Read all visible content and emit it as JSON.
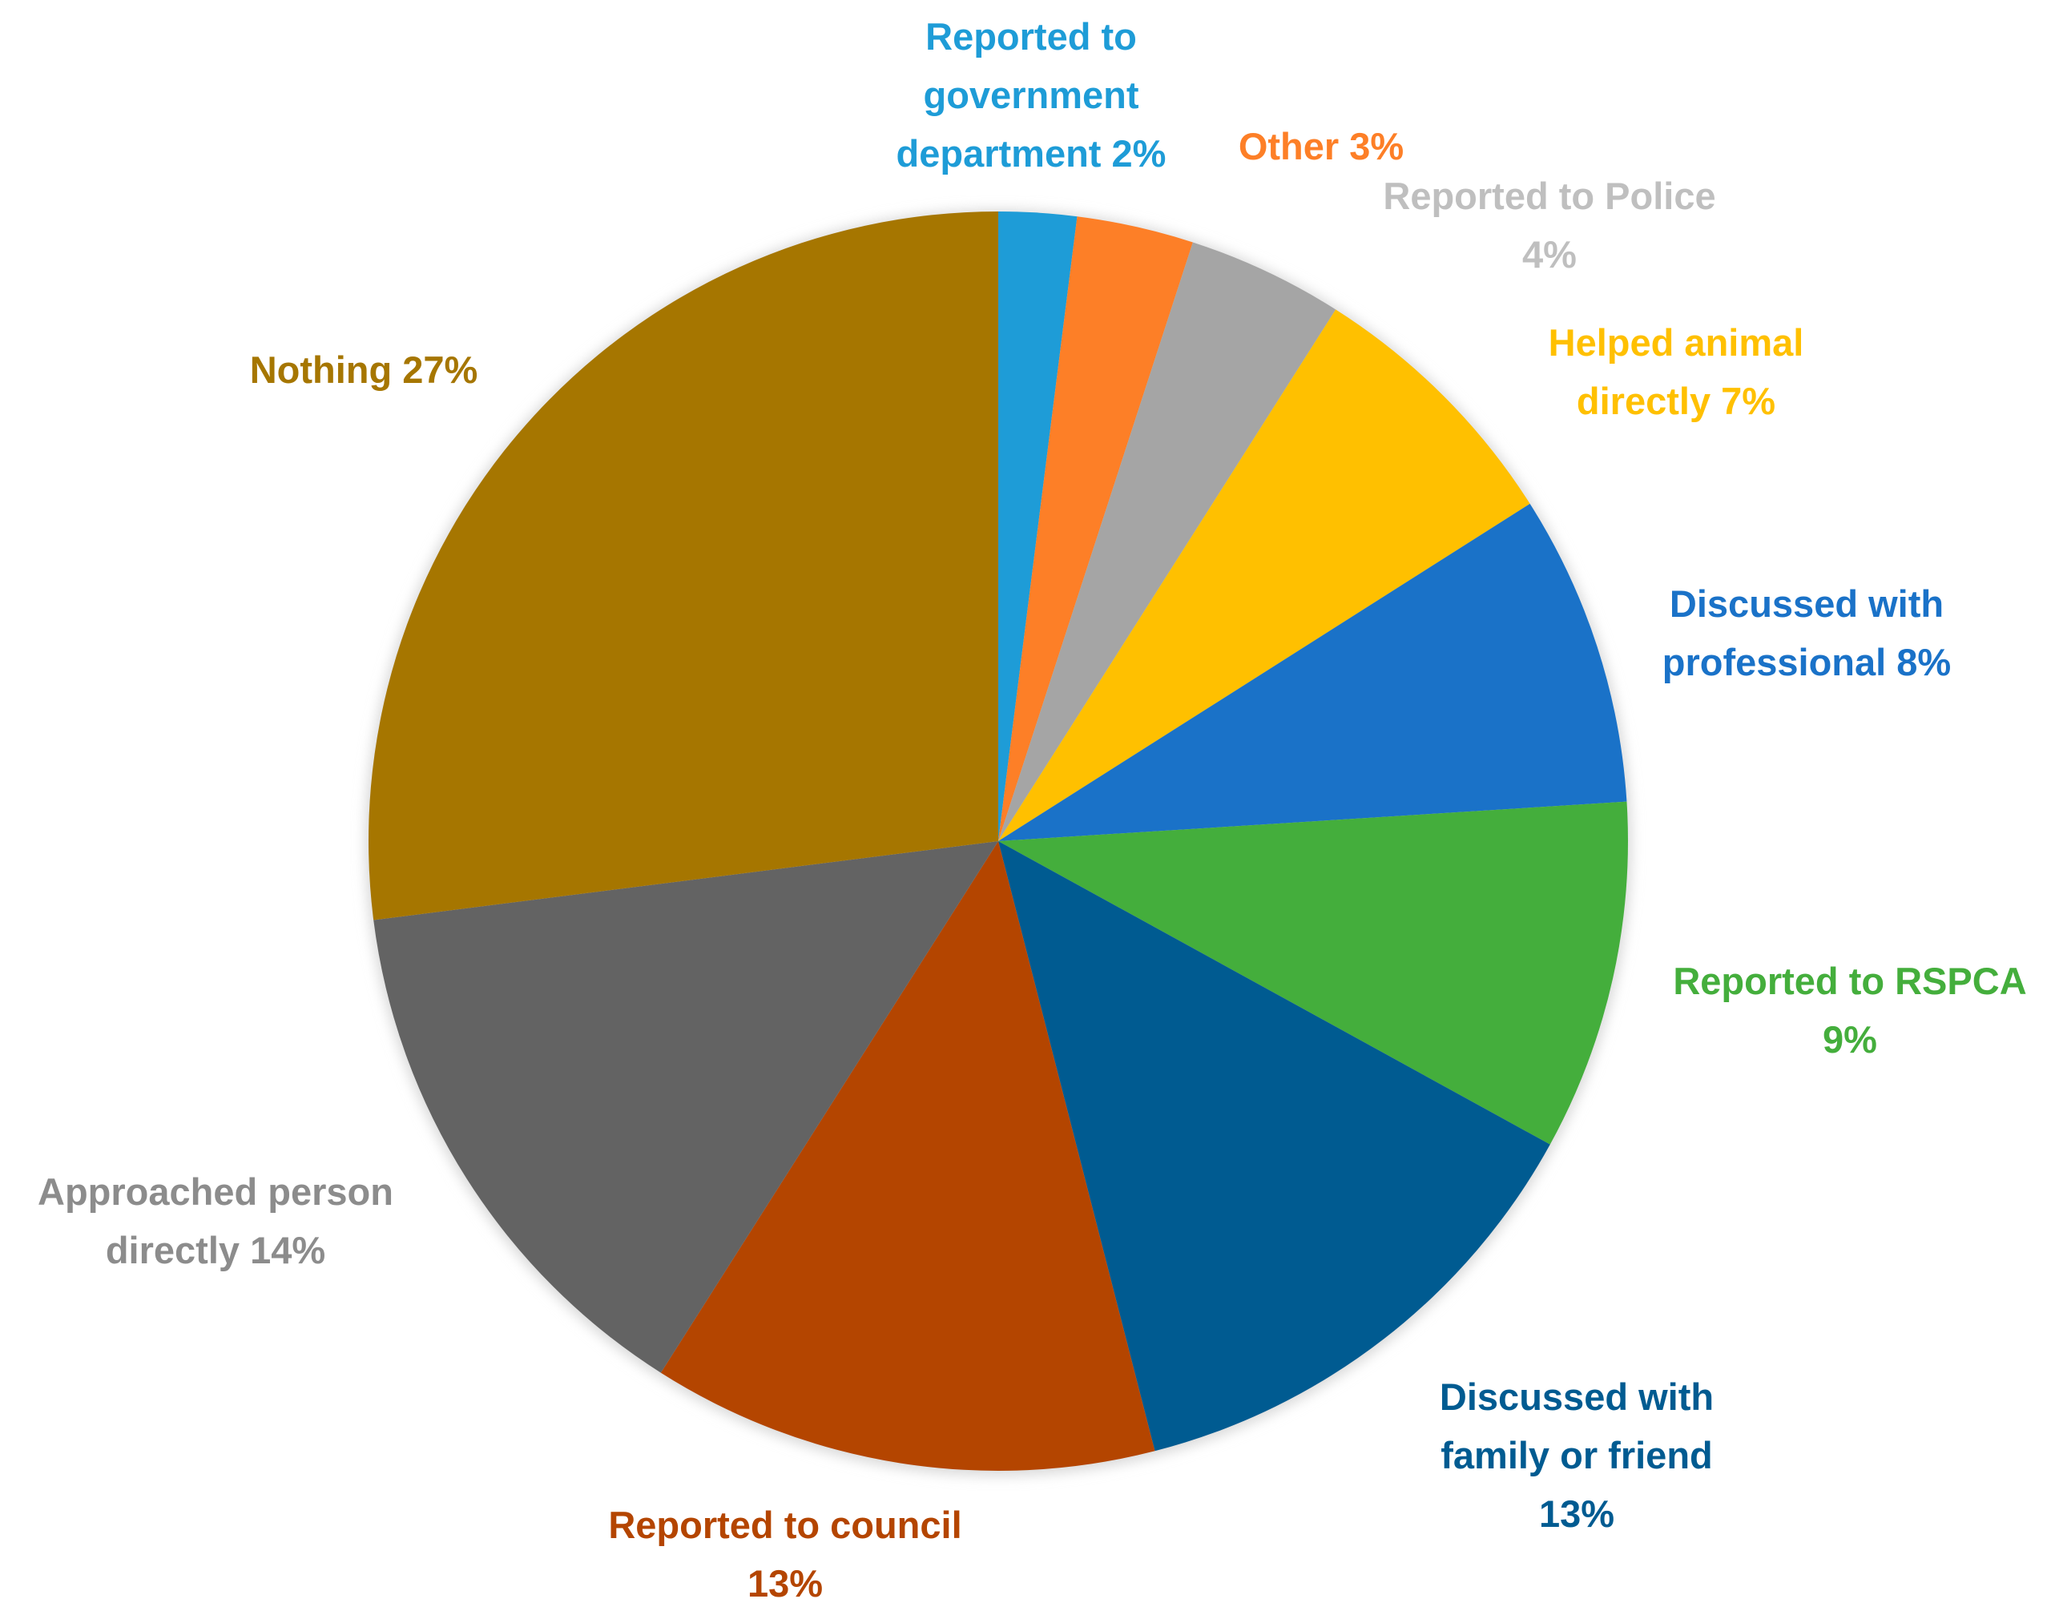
{
  "chart_data": {
    "type": "pie",
    "title": "",
    "start": "top",
    "direction": "clockwise",
    "slices": [
      {
        "label": "Reported to government department",
        "value": 2,
        "lines": [
          "Reported to",
          "government",
          "department 2%"
        ],
        "color": "#1E9CD7",
        "label_color": "#1E9CD7"
      },
      {
        "label": "Other",
        "value": 3,
        "lines": [
          "Other 3%"
        ],
        "color": "#FD7F27",
        "label_color": "#FD7F27"
      },
      {
        "label": "Reported to Police",
        "value": 4,
        "lines": [
          "Reported to Police",
          "4%"
        ],
        "color": "#A5A5A5",
        "label_color": "#BFBFBF"
      },
      {
        "label": "Helped animal directly",
        "value": 7,
        "lines": [
          "Helped animal",
          "directly 7%"
        ],
        "color": "#FFC000",
        "label_color": "#FFC000"
      },
      {
        "label": "Discussed with professional",
        "value": 8,
        "lines": [
          "Discussed with",
          "professional 8%"
        ],
        "color": "#1A72C8",
        "label_color": "#1A72C8"
      },
      {
        "label": "Reported to RSPCA",
        "value": 9,
        "lines": [
          "Reported to RSPCA",
          "9%"
        ],
        "color": "#44AE3C",
        "label_color": "#44AE3C"
      },
      {
        "label": "Discussed with family or friend",
        "value": 13,
        "lines": [
          "Discussed with",
          "family or friend",
          "13%"
        ],
        "color": "#005B91",
        "label_color": "#005B91"
      },
      {
        "label": "Reported to council",
        "value": 13,
        "lines": [
          "Reported to council",
          "13%"
        ],
        "color": "#B44500",
        "label_color": "#B44500"
      },
      {
        "label": "Approached person directly",
        "value": 14,
        "lines": [
          "Approached person",
          "directly 14%"
        ],
        "color": "#636363",
        "label_color": "#8C8C8C"
      },
      {
        "label": "Nothing",
        "value": 27,
        "lines": [
          "Nothing 27%"
        ],
        "color": "#A67600",
        "label_color": "#A67600"
      }
    ]
  }
}
